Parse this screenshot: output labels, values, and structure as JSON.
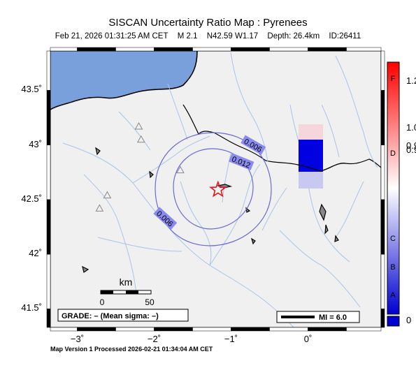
{
  "title": "SISCAN Uncertainty Ratio Map : Pyrenees",
  "event": {
    "datetime": "Feb 21, 2026 01:31:25 AM CET",
    "magnitude": "M 2.1",
    "location": "N42.59 W1.17",
    "depth": "Depth: 26.4km",
    "id": "ID:26411",
    "lon": -1.17,
    "lat": 42.59
  },
  "map": {
    "lon_range": [
      -3.35,
      0.95
    ],
    "lat_range": [
      41.33,
      43.86
    ],
    "lat_ticks": [
      {
        "value": 43.5,
        "label": "43.5˚"
      },
      {
        "value": 43.0,
        "label": "43˚"
      },
      {
        "value": 42.5,
        "label": "42.5˚"
      },
      {
        "value": 42.0,
        "label": "42˚"
      },
      {
        "value": 41.5,
        "label": "41.5˚"
      }
    ],
    "lon_ticks": [
      {
        "value": -3,
        "label": "−3˚"
      },
      {
        "value": -2,
        "label": "−2˚"
      },
      {
        "value": -1,
        "label": "−1˚"
      },
      {
        "value": 0,
        "label": "0˚"
      }
    ],
    "colors": {
      "land": "#f0f0f0",
      "sea": "#7aa0dc",
      "rivers": "#a8c4ea",
      "contours": "#6a6ad8",
      "epicenter": "#e8141e",
      "station_cell": "#0000e0"
    },
    "contour_labels": [
      "0.006",
      "0.012",
      "0.006"
    ],
    "stations": [
      {
        "lon": -2.2,
        "lat": 43.17
      },
      {
        "lon": -2.17,
        "lat": 43.05
      },
      {
        "lon": -1.66,
        "lat": 42.77
      },
      {
        "lon": -2.61,
        "lat": 42.54
      },
      {
        "lon": -2.71,
        "lat": 42.42
      }
    ]
  },
  "scale_bar": {
    "unit": "km",
    "labels": [
      "0",
      "50"
    ]
  },
  "grade": "GRADE: – (Mean sigma: –)",
  "mi_legend": "MI = 6.0",
  "colorbar": {
    "labels": [
      {
        "text": "1.2",
        "value": 1.25
      },
      {
        "text": "1.0",
        "value": 1.0
      },
      {
        "text": "0.9",
        "value": 0.9
      },
      {
        "text": "0.9",
        "value": 0.88
      },
      {
        "text": "0",
        "value": 0
      }
    ],
    "grades": [
      "F",
      "D",
      "C",
      "B",
      "A"
    ]
  },
  "footer": "Map Version 1 Processed 2026-02-21 01:34:04 AM CET"
}
